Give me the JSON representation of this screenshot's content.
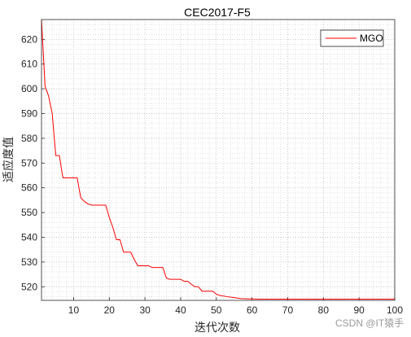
{
  "chart_data": {
    "type": "line",
    "title": "CEC2017-F5",
    "xlabel": "迭代次数",
    "ylabel": "适应度值",
    "xlim": [
      1,
      100
    ],
    "ylim": [
      514.5,
      628
    ],
    "x_ticks": [
      10,
      20,
      30,
      40,
      50,
      60,
      70,
      80,
      90,
      100
    ],
    "y_ticks": [
      520,
      530,
      540,
      550,
      560,
      570,
      580,
      590,
      600,
      610,
      620
    ],
    "grid": "on (major and minor, dotted)",
    "legend_position": "top-right",
    "series": [
      {
        "name": "MGO",
        "color": "#ff0000",
        "points": [
          [
            1,
            628
          ],
          [
            2,
            601
          ],
          [
            3,
            597
          ],
          [
            4,
            590
          ],
          [
            5,
            573
          ],
          [
            6,
            573
          ],
          [
            7,
            564
          ],
          [
            8,
            564
          ],
          [
            11,
            564
          ],
          [
            12,
            556
          ],
          [
            13,
            554.5
          ],
          [
            14,
            553.5
          ],
          [
            15,
            553
          ],
          [
            19,
            553
          ],
          [
            20,
            548
          ],
          [
            21,
            544
          ],
          [
            22,
            539
          ],
          [
            23,
            539
          ],
          [
            24,
            534
          ],
          [
            26,
            534
          ],
          [
            27,
            531
          ],
          [
            28,
            528.5
          ],
          [
            31,
            528.5
          ],
          [
            32,
            527.8
          ],
          [
            35,
            527.8
          ],
          [
            36,
            523.5
          ],
          [
            37,
            523
          ],
          [
            40,
            523
          ],
          [
            41,
            522.2
          ],
          [
            42,
            522.2
          ],
          [
            43,
            521
          ],
          [
            44,
            520
          ],
          [
            45,
            520
          ],
          [
            46,
            518.2
          ],
          [
            49,
            518.2
          ],
          [
            50,
            517
          ],
          [
            51,
            516.5
          ],
          [
            53,
            516
          ],
          [
            55,
            515.6
          ],
          [
            57,
            515.2
          ],
          [
            59,
            515.1
          ],
          [
            62,
            515
          ],
          [
            70,
            515
          ],
          [
            100,
            515
          ]
        ]
      }
    ]
  },
  "watermark": "CSDN @IT猿手"
}
